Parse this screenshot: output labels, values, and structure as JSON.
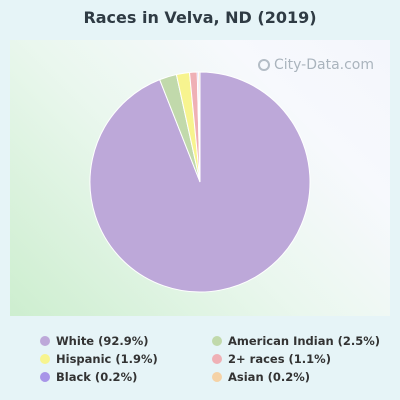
{
  "title": "Races in Velva, ND (2019)",
  "watermark": "City-Data.com",
  "chart_data": {
    "type": "pie",
    "title": "Races in Velva, ND (2019)",
    "slices": [
      {
        "label": "White (92.9%)",
        "value": 92.9,
        "color": "#bda8d9"
      },
      {
        "label": "American Indian (2.5%)",
        "value": 2.5,
        "color": "#c1d9ab"
      },
      {
        "label": "Hispanic (1.9%)",
        "value": 1.9,
        "color": "#f7f48f"
      },
      {
        "label": "2+ races (1.1%)",
        "value": 1.1,
        "color": "#efb0b5"
      },
      {
        "label": "Black (0.2%)",
        "value": 0.2,
        "color": "#a895e8"
      },
      {
        "label": "Asian (0.2%)",
        "value": 0.2,
        "color": "#f5d2a6"
      }
    ],
    "legend_position": "bottom",
    "legend_columns": [
      [
        "White (92.9%)",
        "Hispanic (1.9%)",
        "Black (0.2%)"
      ],
      [
        "American Indian (2.5%)",
        "2+ races (1.1%)",
        "Asian (0.2%)"
      ]
    ]
  }
}
